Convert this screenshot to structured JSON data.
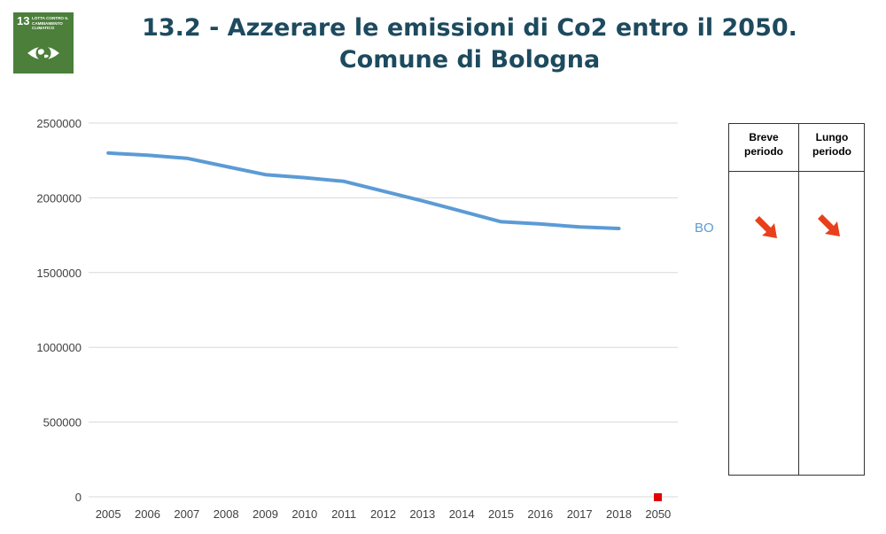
{
  "sdg": {
    "number": "13",
    "label": "LOTTA CONTRO IL CAMBIAMENTO CLIMATICO",
    "icon": "eye-globe-icon",
    "color": "#4b7f3a"
  },
  "title": {
    "line1": "13.2 - Azzerare le emissioni di Co2 entro il 2050.",
    "line2": "Comune di Bologna",
    "color": "#1d4a5e"
  },
  "chart_data": {
    "type": "line",
    "categories": [
      "2005",
      "2006",
      "2007",
      "2008",
      "2009",
      "2010",
      "2011",
      "2012",
      "2013",
      "2014",
      "2015",
      "2016",
      "2017",
      "2018",
      "2050"
    ],
    "series": [
      {
        "name": "BO",
        "color": "#5b9bd5",
        "values": [
          2300000,
          2285000,
          2265000,
          2210000,
          2155000,
          2135000,
          2110000,
          2045000,
          1980000,
          1910000,
          1840000,
          1825000,
          1805000,
          1795000,
          null
        ]
      }
    ],
    "target": {
      "category": "2050",
      "value": 0,
      "color": "#e30000"
    },
    "yticks": [
      "0",
      "500000",
      "1000000",
      "1500000",
      "2000000",
      "2500000"
    ],
    "ylim": [
      0,
      2500000
    ],
    "grid": true,
    "legend": "right-inline",
    "title": "",
    "xlabel": "",
    "ylabel": ""
  },
  "trend_table": {
    "columns": [
      {
        "label_line1": "Breve",
        "label_line2": "periodo",
        "trend": "down-right-arrow-icon"
      },
      {
        "label_line1": "Lungo",
        "label_line2": "periodo",
        "trend": "down-right-arrow-icon"
      }
    ],
    "arrow_color": "#e8401c"
  }
}
